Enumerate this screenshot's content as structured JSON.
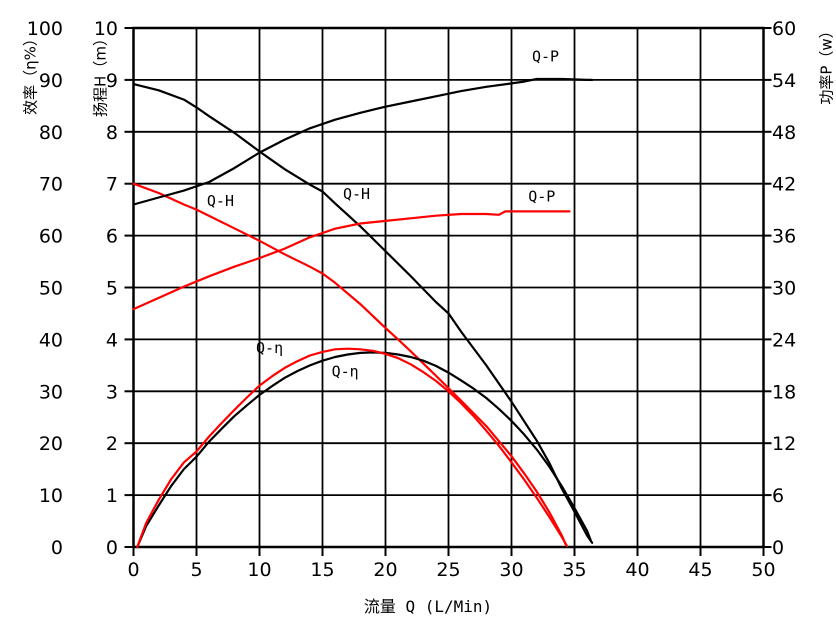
{
  "chart_data": {
    "type": "line",
    "title": "",
    "grid": true,
    "colors": {
      "primary_curve": "#000000",
      "secondary_curve": "#ff0000",
      "grid": "#000000",
      "background": "#ffffff"
    },
    "x_axis": {
      "label": "流量 Q (L/Min)",
      "min": 0,
      "max": 50,
      "ticks": [
        0,
        5,
        10,
        15,
        20,
        25,
        30,
        35,
        40,
        45,
        50
      ]
    },
    "y_axes": [
      {
        "id": "eta",
        "label": "效率（η%）",
        "min": 0,
        "max": 100,
        "side": "left-outer",
        "ticks": [
          0,
          10,
          20,
          30,
          40,
          50,
          60,
          70,
          80,
          90,
          100
        ]
      },
      {
        "id": "H",
        "label": "扬程H（m）",
        "min": 0,
        "max": 10,
        "side": "left-inner",
        "ticks": [
          0,
          1,
          2,
          3,
          4,
          5,
          6,
          7,
          8,
          9,
          10
        ]
      },
      {
        "id": "P",
        "label": "功率P（w）",
        "min": 0,
        "max": 60,
        "side": "right",
        "ticks": [
          0,
          6,
          12,
          18,
          24,
          30,
          36,
          42,
          48,
          54,
          60
        ]
      }
    ],
    "series": [
      {
        "name": "Q-H",
        "variant": "black",
        "axis": "H",
        "color": "#000000",
        "points": [
          [
            0,
            8.92
          ],
          [
            2,
            8.8
          ],
          [
            4,
            8.62
          ],
          [
            5,
            8.47
          ],
          [
            6,
            8.3
          ],
          [
            8,
            7.98
          ],
          [
            10,
            7.62
          ],
          [
            12,
            7.28
          ],
          [
            14,
            6.98
          ],
          [
            15,
            6.85
          ],
          [
            16,
            6.62
          ],
          [
            18,
            6.18
          ],
          [
            20,
            5.7
          ],
          [
            22,
            5.22
          ],
          [
            24,
            4.72
          ],
          [
            25,
            4.5
          ],
          [
            26,
            4.15
          ],
          [
            28,
            3.5
          ],
          [
            30,
            2.8
          ],
          [
            32,
            2.05
          ],
          [
            33,
            1.62
          ],
          [
            34,
            1.12
          ],
          [
            35,
            0.68
          ],
          [
            36,
            0.22
          ],
          [
            36.4,
            0.08
          ]
        ]
      },
      {
        "name": "Q-H",
        "variant": "red",
        "axis": "H",
        "color": "#ff0000",
        "points": [
          [
            0,
            7.0
          ],
          [
            2,
            6.82
          ],
          [
            4,
            6.6
          ],
          [
            5,
            6.5
          ],
          [
            6,
            6.38
          ],
          [
            8,
            6.14
          ],
          [
            10,
            5.9
          ],
          [
            12,
            5.64
          ],
          [
            14,
            5.4
          ],
          [
            15,
            5.27
          ],
          [
            16,
            5.09
          ],
          [
            18,
            4.68
          ],
          [
            20,
            4.22
          ],
          [
            21,
            4.0
          ],
          [
            22,
            3.77
          ],
          [
            24,
            3.3
          ],
          [
            26,
            2.82
          ],
          [
            28,
            2.33
          ],
          [
            30,
            1.75
          ],
          [
            31,
            1.42
          ],
          [
            32,
            1.07
          ],
          [
            33,
            0.67
          ],
          [
            34,
            0.22
          ],
          [
            34.3,
            0.05
          ]
        ]
      },
      {
        "name": "Q-P",
        "variant": "black",
        "axis": "P",
        "color": "#000000",
        "points": [
          [
            0,
            39.6
          ],
          [
            2,
            40.4
          ],
          [
            4,
            41.2
          ],
          [
            6,
            42.2
          ],
          [
            8,
            43.8
          ],
          [
            10,
            45.6
          ],
          [
            12,
            47.1
          ],
          [
            14,
            48.4
          ],
          [
            16,
            49.4
          ],
          [
            18,
            50.2
          ],
          [
            20,
            50.9
          ],
          [
            22,
            51.5
          ],
          [
            24,
            52.1
          ],
          [
            26,
            52.7
          ],
          [
            28,
            53.2
          ],
          [
            30,
            53.6
          ],
          [
            31,
            53.8
          ],
          [
            32,
            54.1
          ],
          [
            34,
            54.1
          ],
          [
            36,
            54.0
          ],
          [
            36.4,
            54.0
          ]
        ]
      },
      {
        "name": "Q-P",
        "variant": "red",
        "axis": "P",
        "color": "#ff0000",
        "points": [
          [
            0,
            27.5
          ],
          [
            2,
            28.8
          ],
          [
            4,
            30.1
          ],
          [
            6,
            31.3
          ],
          [
            8,
            32.4
          ],
          [
            10,
            33.4
          ],
          [
            12,
            34.5
          ],
          [
            14,
            35.8
          ],
          [
            15,
            36.3
          ],
          [
            16,
            36.8
          ],
          [
            18,
            37.4
          ],
          [
            20,
            37.7
          ],
          [
            22,
            38.0
          ],
          [
            24,
            38.3
          ],
          [
            26,
            38.5
          ],
          [
            28,
            38.5
          ],
          [
            29,
            38.4
          ],
          [
            29.5,
            38.8
          ],
          [
            32,
            38.8
          ],
          [
            34.6,
            38.8
          ]
        ]
      },
      {
        "name": "Q-η",
        "variant": "black",
        "axis": "eta",
        "color": "#000000",
        "points": [
          [
            0.3,
            0
          ],
          [
            1,
            4
          ],
          [
            2,
            8
          ],
          [
            3,
            11.8
          ],
          [
            4,
            15
          ],
          [
            5,
            17.4
          ],
          [
            6,
            20.3
          ],
          [
            7,
            22.8
          ],
          [
            8,
            25.2
          ],
          [
            9,
            27.3
          ],
          [
            10,
            29.3
          ],
          [
            11,
            31
          ],
          [
            12,
            32.6
          ],
          [
            13,
            33.9
          ],
          [
            14,
            35
          ],
          [
            15,
            35.9
          ],
          [
            16,
            36.6
          ],
          [
            17,
            37.1
          ],
          [
            18,
            37.4
          ],
          [
            19,
            37.5
          ],
          [
            20,
            37.4
          ],
          [
            21,
            37.1
          ],
          [
            22,
            36.6
          ],
          [
            23,
            35.9
          ],
          [
            24,
            34.9
          ],
          [
            25,
            33.6
          ],
          [
            26,
            32.1
          ],
          [
            27,
            30.5
          ],
          [
            28,
            28.7
          ],
          [
            29,
            26.6
          ],
          [
            30,
            24.3
          ],
          [
            31,
            21.7
          ],
          [
            32,
            18.8
          ],
          [
            33,
            15.5
          ],
          [
            34,
            11.7
          ],
          [
            35,
            7.5
          ],
          [
            36,
            3.1
          ],
          [
            36.3,
            1.2
          ]
        ]
      },
      {
        "name": "Q-η",
        "variant": "red",
        "axis": "eta",
        "color": "#ff0000",
        "points": [
          [
            0.3,
            0
          ],
          [
            1,
            4.6
          ],
          [
            2,
            9.1
          ],
          [
            3,
            13.1
          ],
          [
            4,
            16.3
          ],
          [
            5,
            18.4
          ],
          [
            6,
            21.3
          ],
          [
            7,
            23.9
          ],
          [
            8,
            26.4
          ],
          [
            9,
            28.8
          ],
          [
            10,
            31.1
          ],
          [
            11,
            32.9
          ],
          [
            12,
            34.5
          ],
          [
            13,
            35.8
          ],
          [
            14,
            36.9
          ],
          [
            15,
            37.6
          ],
          [
            16,
            38.1
          ],
          [
            17,
            38.2
          ],
          [
            18,
            38.1
          ],
          [
            19,
            37.8
          ],
          [
            20,
            37.2
          ],
          [
            21,
            36.4
          ],
          [
            22,
            35.2
          ],
          [
            23,
            33.7
          ],
          [
            24,
            32
          ],
          [
            25,
            30
          ],
          [
            26,
            27.7
          ],
          [
            27,
            25.2
          ],
          [
            28,
            22.4
          ],
          [
            29,
            19.5
          ],
          [
            30,
            16.3
          ],
          [
            31,
            13
          ],
          [
            32,
            9.5
          ],
          [
            33,
            5.8
          ],
          [
            34,
            1.9
          ],
          [
            34.4,
            0.2
          ]
        ]
      }
    ],
    "annotations": [
      {
        "text": "Q-H",
        "q": 6.9,
        "h": 6.67,
        "color": "#000000"
      },
      {
        "text": "Q-H",
        "q": 17.7,
        "h": 6.8,
        "color": "#000000"
      },
      {
        "text": "Q-P",
        "q": 32.7,
        "h": 9.45,
        "color": "#000000"
      },
      {
        "text": "Q-P",
        "q": 32.4,
        "h": 6.75,
        "color": "#000000"
      },
      {
        "text": "Q-η",
        "q": 10.8,
        "h": 3.83,
        "color": "#000000"
      },
      {
        "text": "Q-η",
        "q": 16.8,
        "h": 3.38,
        "color": "#000000"
      }
    ]
  }
}
